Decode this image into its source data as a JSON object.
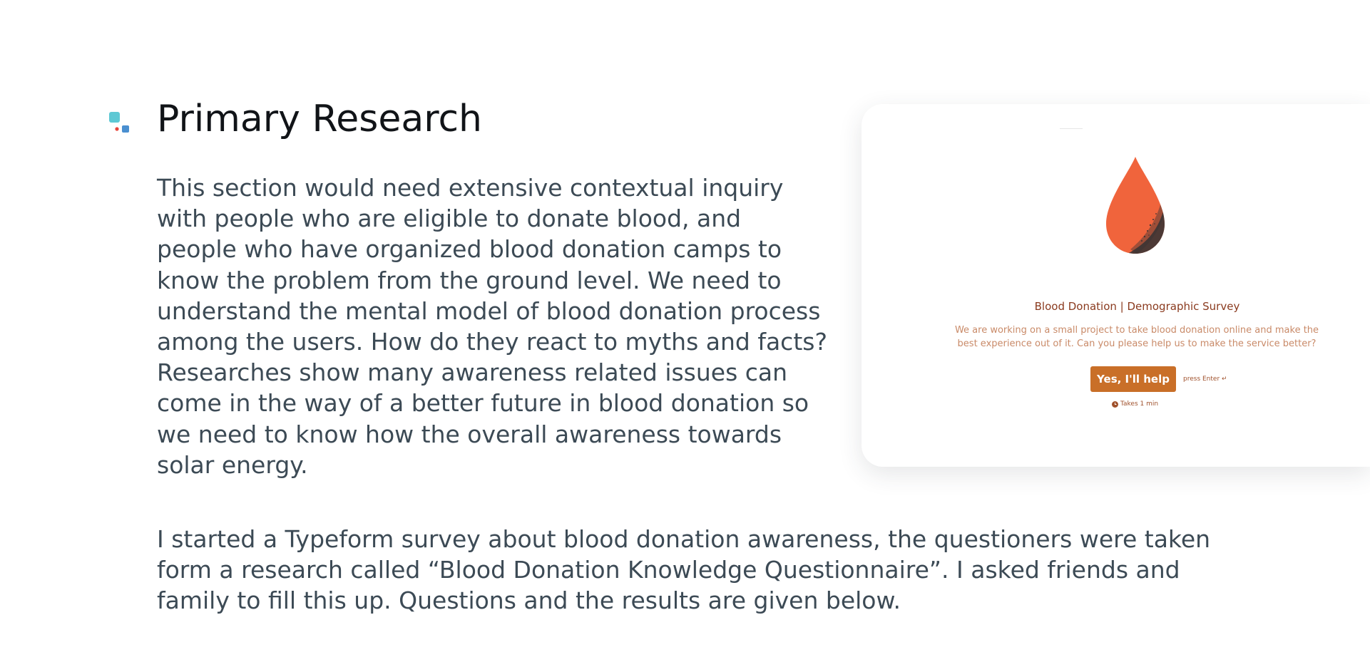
{
  "section": {
    "icon": "stacked-squares-icon",
    "title": "Primary Research",
    "paragraphs": [
      "This section would need extensive contextual inquiry with people who are eligible to donate blood, and people who have organized blood donation camps to know the problem from the ground level. We need to understand the mental model of blood donation process among the users. How do they react to myths and facts? Researches show many awareness related issues can come in the way of a better future in blood donation so we need to know how the overall awareness towards solar energy.",
      "I started a Typeform survey about blood donation awareness, the questioners were taken form a research called “Blood Donation Knowledge Questionnaire”. I asked friends and family to fill this up. Questions and the results are given below."
    ]
  },
  "survey_preview": {
    "logo_icon": "blood-drop-icon",
    "title": "Blood Donation | Demographic Survey",
    "description": "We are working on a small project to take blood donation online and make the best experience out of it. Can you please help us to make the service better?",
    "button_label": "Yes, I'll help",
    "enter_hint": "press Enter ↵",
    "time_icon": "clock-icon",
    "time_hint": "Takes 1 min"
  },
  "colors": {
    "title_text": "#111418",
    "body_text": "#3c4a55",
    "drop": "#f0643c",
    "button": "#c96f28",
    "survey_title": "#8a3a1e",
    "survey_desc": "#c98a68",
    "icon_teal": "#5ec8d4",
    "icon_blue": "#4a8fd0",
    "icon_red": "#e8443a"
  }
}
